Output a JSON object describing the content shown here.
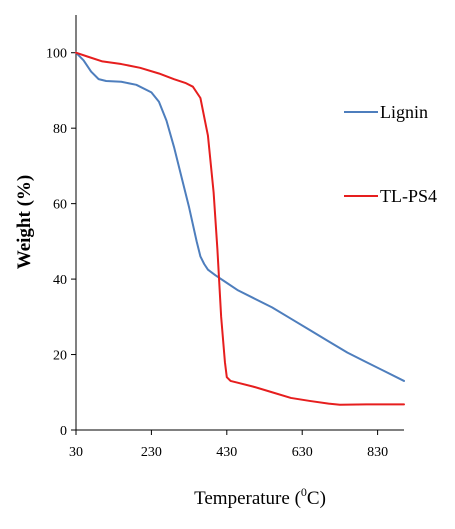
{
  "chart_data": {
    "type": "line",
    "xlabel": "Temperature",
    "xlabel_unit_base": "C",
    "xlabel_unit_sup": "0",
    "ylabel": "Weight (%)",
    "xlim": [
      30,
      900
    ],
    "ylim": [
      0,
      110
    ],
    "x_ticks": [
      30,
      230,
      430,
      630,
      830
    ],
    "y_ticks": [
      0,
      20,
      40,
      60,
      80,
      100
    ],
    "grid": false,
    "legend": "right",
    "series": [
      {
        "name": "Lignin",
        "color": "#4e7ebd",
        "points": [
          [
            30,
            100
          ],
          [
            50,
            98
          ],
          [
            70,
            95
          ],
          [
            90,
            93
          ],
          [
            110,
            92.5
          ],
          [
            150,
            92.3
          ],
          [
            190,
            91.5
          ],
          [
            230,
            89.5
          ],
          [
            250,
            87
          ],
          [
            270,
            82
          ],
          [
            290,
            75
          ],
          [
            310,
            67
          ],
          [
            330,
            59
          ],
          [
            350,
            50
          ],
          [
            360,
            46
          ],
          [
            370,
            44
          ],
          [
            380,
            42.5
          ],
          [
            400,
            41
          ],
          [
            430,
            39
          ],
          [
            460,
            37
          ],
          [
            500,
            35
          ],
          [
            550,
            32.5
          ],
          [
            600,
            29.5
          ],
          [
            650,
            26.5
          ],
          [
            700,
            23.5
          ],
          [
            750,
            20.5
          ],
          [
            800,
            18
          ],
          [
            850,
            15.5
          ],
          [
            900,
            13
          ]
        ]
      },
      {
        "name": "TL-PS4",
        "color": "#e61e1e",
        "points": [
          [
            30,
            100
          ],
          [
            60,
            99
          ],
          [
            100,
            97.7
          ],
          [
            150,
            97
          ],
          [
            200,
            96
          ],
          [
            250,
            94.5
          ],
          [
            290,
            93
          ],
          [
            320,
            92
          ],
          [
            340,
            91
          ],
          [
            360,
            88
          ],
          [
            380,
            78
          ],
          [
            395,
            63
          ],
          [
            405,
            48
          ],
          [
            415,
            30
          ],
          [
            425,
            18
          ],
          [
            430,
            14
          ],
          [
            440,
            13
          ],
          [
            460,
            12.5
          ],
          [
            500,
            11.5
          ],
          [
            550,
            10
          ],
          [
            600,
            8.5
          ],
          [
            650,
            7.7
          ],
          [
            700,
            7
          ],
          [
            730,
            6.7
          ],
          [
            800,
            6.8
          ],
          [
            850,
            6.8
          ],
          [
            900,
            6.8
          ]
        ]
      }
    ]
  }
}
